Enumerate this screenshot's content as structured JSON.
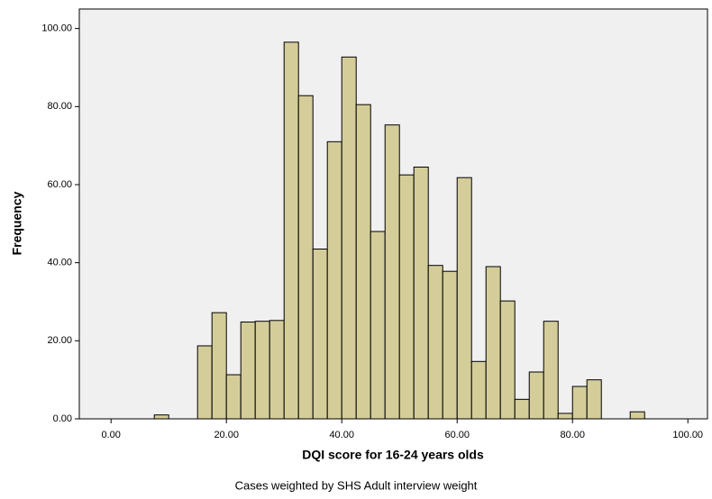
{
  "chart_data": {
    "type": "histogram",
    "x_label": "DQI score for 16-24 years olds",
    "y_label": "Frequency",
    "footnote": "Cases weighted by SHS Adult interview weight",
    "bins": [
      7.5,
      10,
      12.5,
      15,
      17.5,
      20,
      22.5,
      25,
      27.5,
      30,
      32.5,
      35,
      37.5,
      40,
      42.5,
      45,
      47.5,
      50,
      52.5,
      55,
      57.5,
      60,
      62.5,
      65,
      67.5,
      70,
      72.5,
      75,
      77.5,
      80,
      82.5,
      85,
      87.5,
      90,
      92.5
    ],
    "values": [
      1,
      0,
      0,
      18.7,
      27.2,
      11.3,
      24.8,
      25,
      25.2,
      96.5,
      82.8,
      43.5,
      71,
      92.7,
      80.5,
      48,
      75.3,
      62.5,
      64.5,
      39.3,
      37.8,
      61.8,
      14.7,
      39,
      30.2,
      5,
      12,
      25,
      1.4,
      8.3,
      10,
      0,
      0,
      1.8
    ],
    "color": "#d4cd9a",
    "xlim": [
      -5.5,
      103.4
    ],
    "ylim": [
      0,
      105
    ],
    "xticks": [
      {
        "value": 0,
        "label": "0.00"
      },
      {
        "value": 20,
        "label": "20.00"
      },
      {
        "value": 40,
        "label": "40.00"
      },
      {
        "value": 60,
        "label": "60.00"
      },
      {
        "value": 80,
        "label": "80.00"
      },
      {
        "value": 100,
        "label": "100.00"
      }
    ],
    "yticks": [
      {
        "value": 0,
        "label": "0.00"
      },
      {
        "value": 20,
        "label": "20.00"
      },
      {
        "value": 40,
        "label": "40.00"
      },
      {
        "value": 60,
        "label": "60.00"
      },
      {
        "value": 80,
        "label": "80.00"
      },
      {
        "value": 100,
        "label": "100.00"
      }
    ]
  }
}
